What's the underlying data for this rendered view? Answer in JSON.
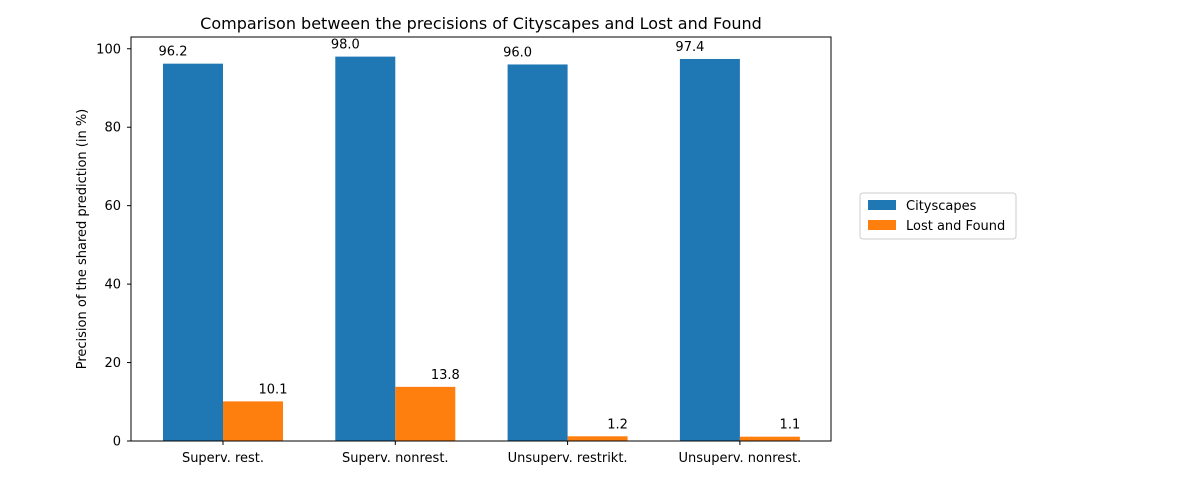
{
  "chart_data": {
    "type": "bar",
    "title": "Comparison between the precisions of Cityscapes and Lost and Found",
    "xlabel": "",
    "ylabel": "Precision of the shared prediction (in %)",
    "categories": [
      "Superv. rest.",
      "Superv. nonrest.",
      "Unsuperv. restrikt.",
      "Unsuperv. nonrest."
    ],
    "series": [
      {
        "name": "Cityscapes",
        "color": "#1f77b4",
        "values": [
          96.2,
          98.0,
          96.0,
          97.4
        ],
        "labels": [
          "96.2",
          "98.0",
          "96.0",
          "97.4"
        ]
      },
      {
        "name": "Lost and Found",
        "color": "#ff7f0e",
        "values": [
          10.1,
          13.8,
          1.2,
          1.1
        ],
        "labels": [
          "10.1",
          "13.8",
          "1.2",
          "1.1"
        ]
      }
    ],
    "ylim": [
      0,
      103
    ],
    "yticks": [
      0,
      20,
      40,
      60,
      80,
      100
    ],
    "grid": false,
    "legend_position": "center-right outside"
  }
}
